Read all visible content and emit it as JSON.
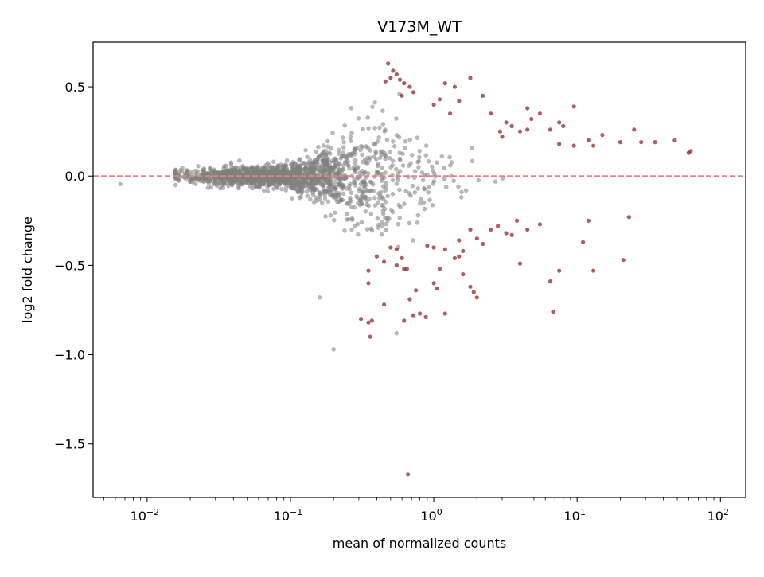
{
  "chart_data": {
    "type": "scatter",
    "title": "V173M_WT",
    "xlabel": "mean of normalized counts",
    "ylabel": "log2 fold change",
    "x_scale": "log",
    "xlim": [
      0.0042,
      150
    ],
    "ylim": [
      -1.8,
      0.75
    ],
    "grid": false,
    "x_ticks": [
      {
        "value": 0.01,
        "base": "10",
        "exp": "−2"
      },
      {
        "value": 0.1,
        "base": "10",
        "exp": "−1"
      },
      {
        "value": 1,
        "base": "10",
        "exp": "0"
      },
      {
        "value": 10,
        "base": "10",
        "exp": "1"
      },
      {
        "value": 100,
        "base": "10",
        "exp": "2"
      }
    ],
    "y_ticks": [
      {
        "value": 0.5,
        "label": "0.5"
      },
      {
        "value": 0.0,
        "label": "0.0"
      },
      {
        "value": -0.5,
        "label": "−0.5"
      },
      {
        "value": -1.0,
        "label": "−1.0"
      },
      {
        "value": -1.5,
        "label": "−1.5"
      }
    ],
    "reference_line": {
      "y": 0,
      "color": "#e8807f",
      "style": "dashed"
    },
    "colors": {
      "not_significant": "#808080",
      "significant": "#8b1a1a"
    },
    "series": [
      {
        "group": "significant",
        "points": [
          [
            0.48,
            0.63
          ],
          [
            0.52,
            0.59
          ],
          [
            0.5,
            0.55
          ],
          [
            0.55,
            0.57
          ],
          [
            0.46,
            0.53
          ],
          [
            0.58,
            0.54
          ],
          [
            0.62,
            0.52
          ],
          [
            0.68,
            0.5
          ],
          [
            0.6,
            0.45
          ],
          [
            0.72,
            0.47
          ],
          [
            1.2,
            0.52
          ],
          [
            1.4,
            0.5
          ],
          [
            1.8,
            0.55
          ],
          [
            1.1,
            0.43
          ],
          [
            1.0,
            0.4
          ],
          [
            1.5,
            0.42
          ],
          [
            2.2,
            0.45
          ],
          [
            1.3,
            0.35
          ],
          [
            2.5,
            0.35
          ],
          [
            3.2,
            0.3
          ],
          [
            3.5,
            0.28
          ],
          [
            4.5,
            0.38
          ],
          [
            5.5,
            0.35
          ],
          [
            4.8,
            0.32
          ],
          [
            7.5,
            0.3
          ],
          [
            9.5,
            0.39
          ],
          [
            3.0,
            0.22
          ],
          [
            2.9,
            0.25
          ],
          [
            4.0,
            0.25
          ],
          [
            4.5,
            0.26
          ],
          [
            6.5,
            0.26
          ],
          [
            8.0,
            0.28
          ],
          [
            7.5,
            0.18
          ],
          [
            9.5,
            0.17
          ],
          [
            12,
            0.2
          ],
          [
            13,
            0.17
          ],
          [
            15,
            0.23
          ],
          [
            20,
            0.19
          ],
          [
            25,
            0.26
          ],
          [
            28,
            0.19
          ],
          [
            35,
            0.19
          ],
          [
            48,
            0.2
          ],
          [
            62,
            0.14
          ],
          [
            60,
            0.13
          ],
          [
            1.8,
            -0.3
          ],
          [
            2.0,
            -0.35
          ],
          [
            2.5,
            -0.3
          ],
          [
            2.8,
            -0.28
          ],
          [
            3.5,
            -0.33
          ],
          [
            3.2,
            -0.32
          ],
          [
            4.5,
            -0.3
          ],
          [
            5.5,
            -0.27
          ],
          [
            3.8,
            -0.25
          ],
          [
            2.2,
            -0.38
          ],
          [
            1.5,
            -0.36
          ],
          [
            1.6,
            -0.42
          ],
          [
            1.2,
            -0.41
          ],
          [
            1.4,
            -0.46
          ],
          [
            1.5,
            -0.45
          ],
          [
            1.0,
            -0.4
          ],
          [
            0.9,
            -0.39
          ],
          [
            0.55,
            -0.41
          ],
          [
            0.5,
            -0.4
          ],
          [
            0.45,
            -0.48
          ],
          [
            0.4,
            -0.45
          ],
          [
            0.6,
            -0.46
          ],
          [
            0.62,
            -0.52
          ],
          [
            0.65,
            -0.52
          ],
          [
            0.55,
            -0.5
          ],
          [
            0.35,
            -0.53
          ],
          [
            0.35,
            -0.6
          ],
          [
            1.1,
            -0.52
          ],
          [
            1.6,
            -0.55
          ],
          [
            1.8,
            -0.62
          ],
          [
            1.9,
            -0.65
          ],
          [
            2.0,
            -0.68
          ],
          [
            1.0,
            -0.6
          ],
          [
            1.05,
            -0.63
          ],
          [
            0.75,
            -0.64
          ],
          [
            0.68,
            -0.69
          ],
          [
            0.72,
            -0.78
          ],
          [
            0.8,
            -0.77
          ],
          [
            0.88,
            -0.79
          ],
          [
            0.45,
            -0.72
          ],
          [
            1.2,
            -0.77
          ],
          [
            0.62,
            -0.81
          ],
          [
            0.37,
            -0.81
          ],
          [
            0.35,
            -0.82
          ],
          [
            0.31,
            -0.8
          ],
          [
            0.36,
            -0.9
          ],
          [
            4.0,
            -0.49
          ],
          [
            6.5,
            -0.59
          ],
          [
            7.5,
            -0.53
          ],
          [
            6.8,
            -0.76
          ],
          [
            11,
            -0.37
          ],
          [
            12,
            -0.25
          ],
          [
            13,
            -0.53
          ],
          [
            21,
            -0.47
          ],
          [
            23,
            -0.23
          ],
          [
            0.66,
            -1.67
          ]
        ]
      },
      {
        "group": "not_significant",
        "points": []
      }
    ]
  }
}
